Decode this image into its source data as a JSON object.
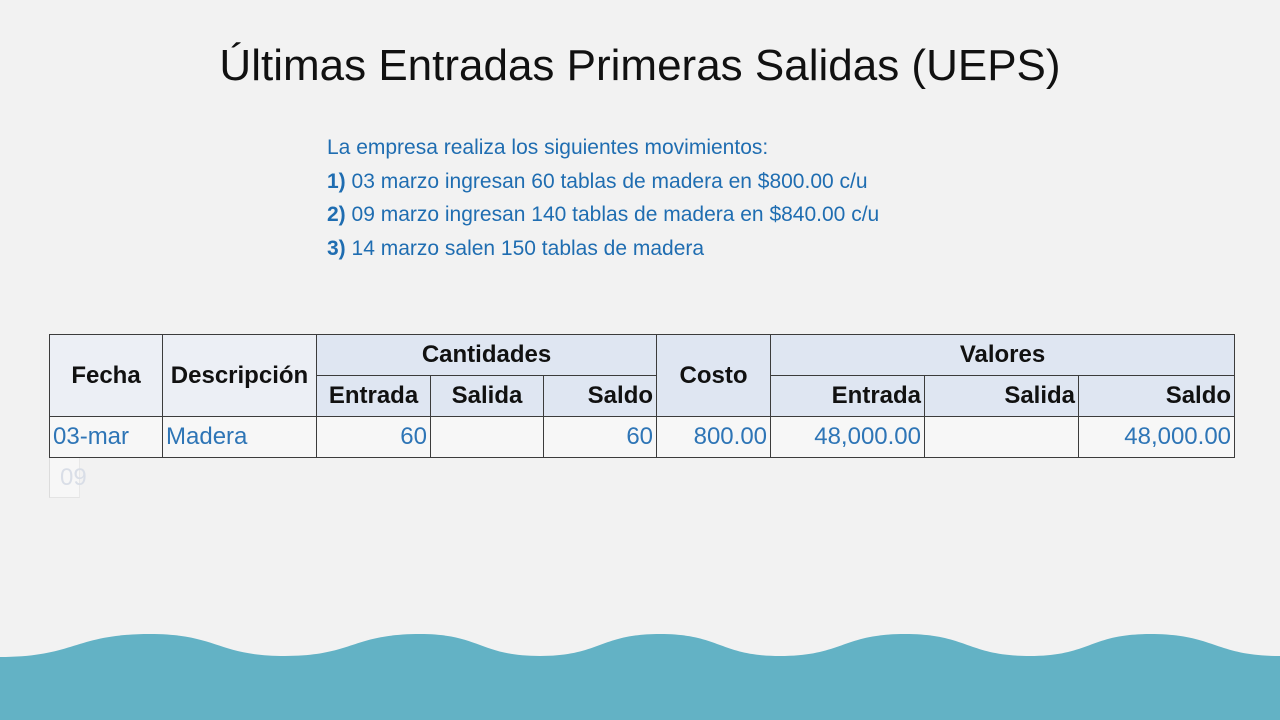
{
  "title": "Últimas Entradas Primeras Salidas (UEPS)",
  "intro": {
    "heading": "La empresa realiza los siguientes movimientos:",
    "items": [
      {
        "num": "1)",
        "text": " 03 marzo ingresan 60 tablas de madera en $800.00 c/u"
      },
      {
        "num": "2)",
        "text": " 09 marzo ingresan 140 tablas de madera en $840.00 c/u"
      },
      {
        "num": "3)",
        "text": " 14 marzo salen 150 tablas de madera"
      }
    ]
  },
  "table": {
    "headers": {
      "fecha": "Fecha",
      "descripcion": "Descripción",
      "cantidades": "Cantidades",
      "costo": "Costo",
      "valores": "Valores",
      "cantidades_sub": [
        "Entrada",
        "Salida",
        "Saldo"
      ],
      "valores_sub": [
        "Entrada",
        "Salida",
        "Saldo"
      ]
    },
    "rows": [
      {
        "fecha": "03-mar",
        "descripcion": "Madera",
        "cant_entrada": "60",
        "cant_salida": "",
        "cant_saldo": "60",
        "costo": "800.00",
        "val_entrada": "48,000.00",
        "val_salida": "",
        "val_saldo": "48,000.00"
      }
    ],
    "partial_row": {
      "fecha": "09"
    }
  },
  "colors": {
    "background": "#f2f2f2",
    "title": "#111111",
    "intro_text": "#1f6db1",
    "table_data_text": "#2e75b6",
    "header_fill": "#dfe6f2",
    "wave": "#63b2c5"
  }
}
